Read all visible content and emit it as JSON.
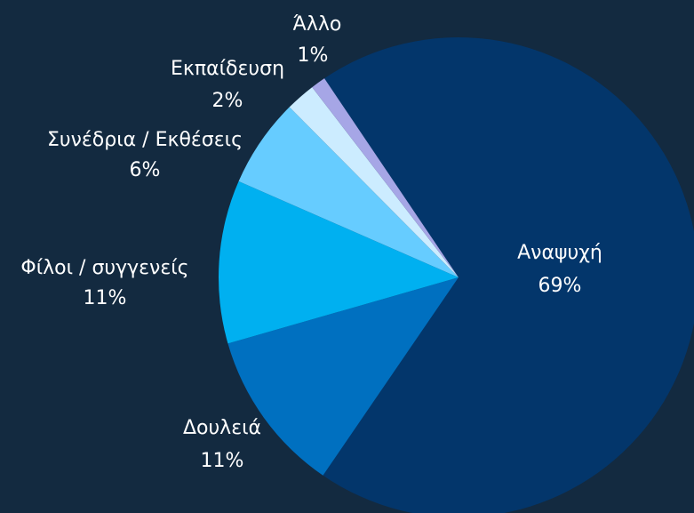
{
  "chart_data": {
    "type": "pie",
    "categories": [
      "Αναψυχή",
      "Δουλειά",
      "Φίλοι / συγγενείς",
      "Συνέδρια / Εκθέσεις",
      "Εκπαίδευση",
      "Άλλο"
    ],
    "values": [
      69,
      11,
      11,
      6,
      2,
      1
    ],
    "value_labels": [
      "69%",
      "11%",
      "11%",
      "6%",
      "2%",
      "1%"
    ],
    "colors": [
      "#03366b",
      "#0070c0",
      "#00b0f0",
      "#66ccff",
      "#ccecff",
      "#a6a6e6"
    ]
  }
}
